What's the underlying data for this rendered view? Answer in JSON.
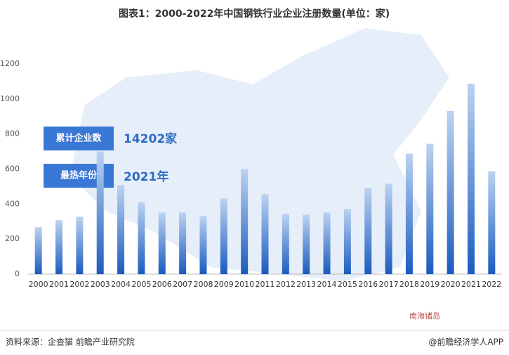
{
  "chart_data": {
    "type": "bar",
    "title": "图表1：2000-2022年中国钢铁行业企业注册数量(单位：家)",
    "categories": [
      "2000",
      "2001",
      "2002",
      "2003",
      "2004",
      "2005",
      "2006",
      "2007",
      "2008",
      "2009",
      "2010",
      "2011",
      "2012",
      "2013",
      "2014",
      "2015",
      "2016",
      "2017",
      "2018",
      "2019",
      "2020",
      "2021",
      "2022"
    ],
    "values": [
      268,
      308,
      328,
      700,
      508,
      412,
      352,
      352,
      332,
      432,
      600,
      456,
      344,
      340,
      352,
      372,
      492,
      516,
      688,
      744,
      932,
      1088,
      588
    ],
    "gradient": [
      "#bcd3f1",
      "#1a5bbf"
    ],
    "ylim": [
      0,
      1200
    ],
    "yticks": [
      0,
      200,
      400,
      600,
      800,
      1000,
      1200
    ],
    "grid": false,
    "callouts": [
      {
        "label": "累计企业数",
        "value": "14202家"
      },
      {
        "label": "最热年份",
        "value": "2021年"
      }
    ],
    "map_label": "南海诸岛",
    "source": "资料来源：企查猫 前瞻产业研究院",
    "credit": "@前瞻经济学人APP"
  }
}
